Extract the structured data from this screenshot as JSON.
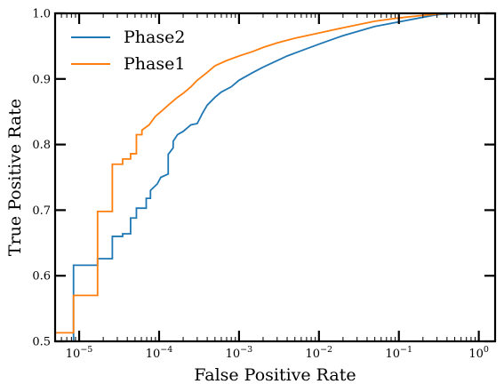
{
  "chart_data": {
    "type": "line",
    "title": "",
    "xlabel": "False Positive Rate",
    "ylabel": "True Positive Rate",
    "xscale": "log",
    "xlim": [
      5e-06,
      1.6
    ],
    "ylim": [
      0.5,
      1.0
    ],
    "grid": false,
    "legend_position": "top-left",
    "x_ticks": [
      {
        "value": 1e-05,
        "mant": "10",
        "exp": "−5"
      },
      {
        "value": 0.0001,
        "mant": "10",
        "exp": "−4"
      },
      {
        "value": 0.001,
        "mant": "10",
        "exp": "−3"
      },
      {
        "value": 0.01,
        "mant": "10",
        "exp": "−2"
      },
      {
        "value": 0.1,
        "mant": "10",
        "exp": "−1"
      },
      {
        "value": 1,
        "mant": "10",
        "exp": "0"
      }
    ],
    "y_ticks": [
      {
        "value": 0.5,
        "label": "0.5"
      },
      {
        "value": 0.6,
        "label": "0.6"
      },
      {
        "value": 0.7,
        "label": "0.7"
      },
      {
        "value": 0.8,
        "label": "0.8"
      },
      {
        "value": 0.9,
        "label": "0.9"
      },
      {
        "value": 1.0,
        "label": "1.0"
      }
    ],
    "series": [
      {
        "name": "Phase2",
        "color": "#1f77b4",
        "x": [
          8.5e-06,
          8.5e-06,
          1.7e-05,
          1.7e-05,
          2.6e-05,
          2.6e-05,
          3.5e-05,
          3.5e-05,
          4.4e-05,
          4.4e-05,
          5.2e-05,
          5.2e-05,
          6.9e-05,
          6.9e-05,
          7.8e-05,
          7.8e-05,
          9.5e-05,
          0.000105,
          0.00013,
          0.00013,
          0.00015,
          0.00015,
          0.00017,
          0.0002,
          0.00025,
          0.0003,
          0.00035,
          0.0004,
          0.0005,
          0.0006,
          0.0008,
          0.001,
          0.0015,
          0.002,
          0.003,
          0.004,
          0.006,
          0.01,
          0.02,
          0.05,
          0.1,
          0.2,
          0.3,
          0.5
        ],
        "y": [
          0.5,
          0.616,
          0.616,
          0.626,
          0.626,
          0.66,
          0.66,
          0.664,
          0.664,
          0.688,
          0.688,
          0.703,
          0.703,
          0.718,
          0.718,
          0.73,
          0.74,
          0.75,
          0.755,
          0.785,
          0.795,
          0.805,
          0.815,
          0.82,
          0.83,
          0.832,
          0.848,
          0.86,
          0.872,
          0.88,
          0.888,
          0.898,
          0.91,
          0.918,
          0.928,
          0.935,
          0.943,
          0.953,
          0.966,
          0.98,
          0.987,
          0.994,
          0.998,
          1.0
        ]
      },
      {
        "name": "Phase1",
        "color": "#ff7f0e",
        "x": [
          5e-06,
          8.5e-06,
          8.5e-06,
          1.7e-05,
          1.7e-05,
          2.6e-05,
          2.6e-05,
          3.5e-05,
          3.5e-05,
          4.4e-05,
          4.4e-05,
          5.2e-05,
          5.2e-05,
          6.1e-05,
          6.1e-05,
          7.5e-05,
          9e-05,
          0.00011,
          0.00013,
          0.00017,
          0.0002,
          0.00025,
          0.0003,
          0.0004,
          0.0005,
          0.0007,
          0.001,
          0.0015,
          0.002,
          0.003,
          0.005,
          0.01,
          0.02,
          0.05,
          0.1,
          0.2,
          0.4
        ],
        "y": [
          0.513,
          0.513,
          0.57,
          0.57,
          0.698,
          0.698,
          0.77,
          0.77,
          0.778,
          0.778,
          0.786,
          0.786,
          0.815,
          0.815,
          0.822,
          0.83,
          0.843,
          0.852,
          0.86,
          0.872,
          0.878,
          0.888,
          0.898,
          0.91,
          0.92,
          0.928,
          0.935,
          0.942,
          0.948,
          0.955,
          0.962,
          0.97,
          0.978,
          0.988,
          0.993,
          0.997,
          1.0
        ]
      }
    ]
  }
}
